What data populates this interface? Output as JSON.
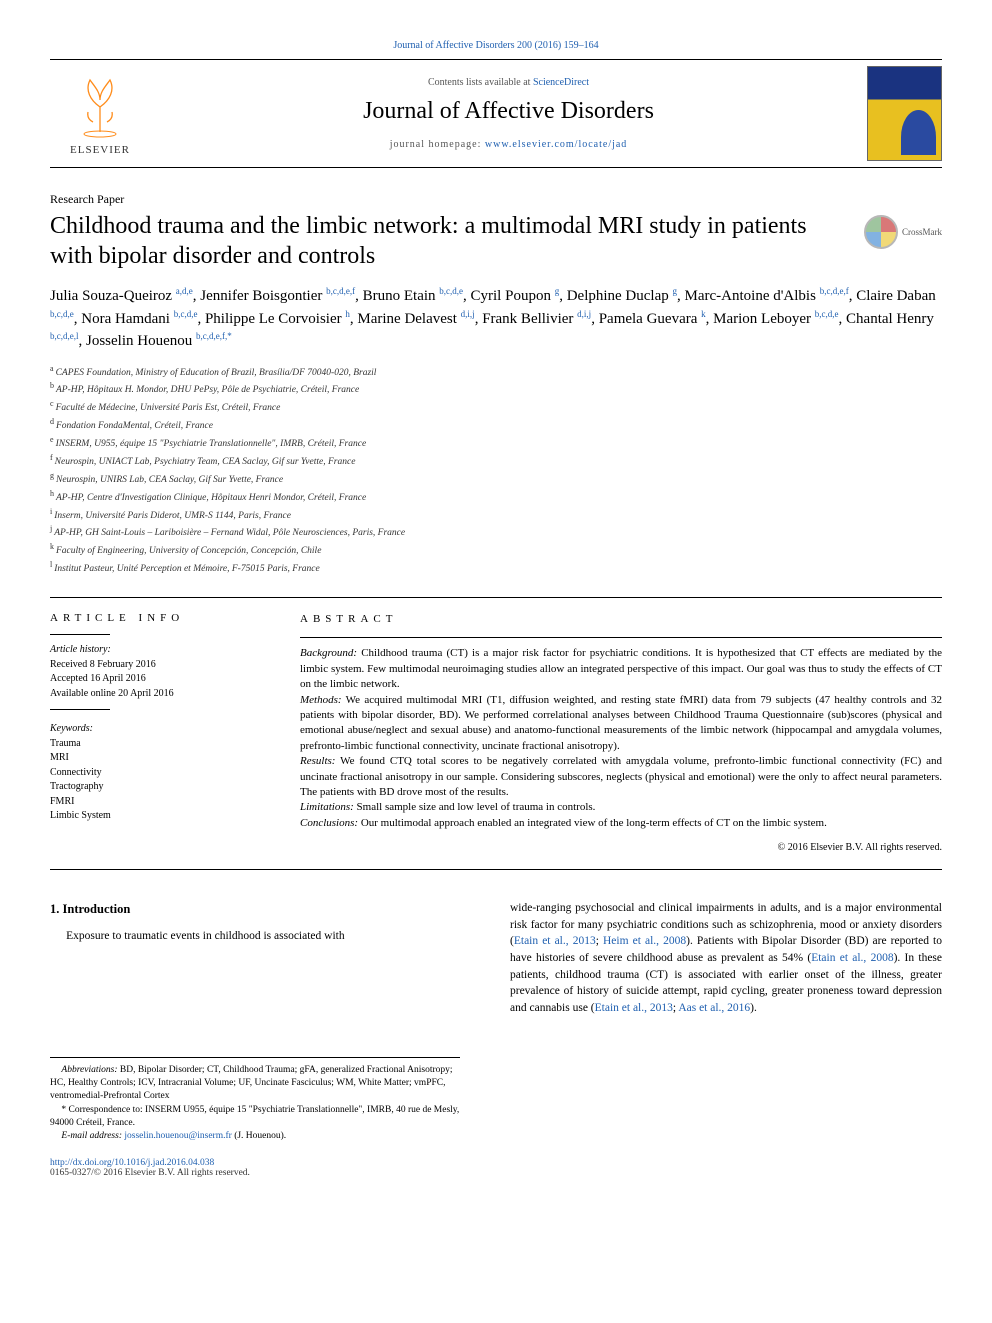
{
  "top_link": "Journal of Affective Disorders 200 (2016) 159–164",
  "header": {
    "publisher": "ELSEVIER",
    "contents_prefix": "Contents lists available at ",
    "contents_link": "ScienceDirect",
    "journal_title": "Journal of Affective Disorders",
    "homepage_prefix": "journal homepage: ",
    "homepage_link": "www.elsevier.com/locate/jad"
  },
  "crossmark_label": "CrossMark",
  "article_type": "Research Paper",
  "title": "Childhood trauma and the limbic network: a multimodal MRI study in patients with bipolar disorder and controls",
  "affiliations": [
    "CAPES Foundation, Ministry of Education of Brazil, Brasília/DF 70040-020, Brazil",
    "AP-HP, Hôpitaux H. Mondor, DHU PePsy, Pôle de Psychiatrie, Créteil, France",
    "Faculté de Médecine, Université Paris Est, Créteil, France",
    "Fondation FondaMental, Créteil, France",
    "INSERM, U955, équipe 15 \"Psychiatrie Translationnelle\", IMRB, Créteil, France",
    "Neurospin, UNIACT Lab, Psychiatry Team, CEA Saclay, Gif sur Yvette, France",
    "Neurospin, UNIRS Lab, CEA Saclay, Gif Sur Yvette, France",
    "AP-HP, Centre d'Investigation Clinique, Hôpitaux Henri Mondor, Créteil, France",
    "Inserm, Université Paris Diderot, UMR-S 1144, Paris, France",
    "AP-HP, GH Saint-Louis – Lariboisière – Fernand Widal, Pôle Neurosciences, Paris, France",
    "Faculty of Engineering, University of Concepción, Concepción, Chile",
    "Institut Pasteur, Unité Perception et Mémoire, F-75015 Paris, France"
  ],
  "aff_keys": [
    "a",
    "b",
    "c",
    "d",
    "e",
    "f",
    "g",
    "h",
    "i",
    "j",
    "k",
    "l"
  ],
  "info": {
    "label": "ARTICLE INFO",
    "history_label": "Article history:",
    "history": [
      "Received 8 February 2016",
      "Accepted 16 April 2016",
      "Available online 20 April 2016"
    ],
    "kw_label": "Keywords:",
    "keywords": [
      "Trauma",
      "MRI",
      "Connectivity",
      "Tractography",
      "FMRI",
      "Limbic System"
    ]
  },
  "abstract": {
    "label": "ABSTRACT",
    "bg_label": "Background:",
    "bg": "Childhood trauma (CT) is a major risk factor for psychiatric conditions. It is hypothesized that CT effects are mediated by the limbic system. Few multimodal neuroimaging studies allow an integrated perspective of this impact. Our goal was thus to study the effects of CT on the limbic network.",
    "methods_label": "Methods:",
    "methods": "We acquired multimodal MRI (T1, diffusion weighted, and resting state fMRI) data from 79 subjects (47 healthy controls and 32 patients with bipolar disorder, BD). We performed correlational analyses between Childhood Trauma Questionnaire (sub)scores (physical and emotional abuse/neglect and sexual abuse) and anatomo-functional measurements of the limbic network (hippocampal and amygdala volumes, prefronto-limbic functional connectivity, uncinate fractional anisotropy).",
    "results_label": "Results:",
    "results": "We found CTQ total scores to be negatively correlated with amygdala volume, prefronto-limbic functional connectivity (FC) and uncinate fractional anisotropy in our sample. Considering subscores, neglects (physical and emotional) were the only to affect neural parameters. The patients with BD drove most of the results.",
    "limit_label": "Limitations:",
    "limit": "Small sample size and low level of trauma in controls.",
    "concl_label": "Conclusions:",
    "concl": "Our multimodal approach enabled an integrated view of the long-term effects of CT on the limbic system.",
    "copyright": "© 2016 Elsevier B.V. All rights reserved."
  },
  "intro": {
    "heading": "1.  Introduction",
    "p1": "Exposure to traumatic events in childhood is associated with",
    "p2a": "wide-ranging psychosocial and clinical impairments in adults, and is a major environmental risk factor for many psychiatric conditions such as schizophrenia, mood or anxiety disorders (",
    "r1": "Etain et al., 2013",
    "p2b": "; ",
    "r2": "Heim et al., 2008",
    "p2c": "). Patients with Bipolar Disorder (BD) are reported to have histories of severe childhood abuse as prevalent as 54% (",
    "r3": "Etain et al., 2008",
    "p2d": "). In these patients, childhood trauma (CT) is associated with earlier onset of the illness, greater prevalence of history of suicide attempt, rapid cycling, greater proneness toward depression and cannabis use (",
    "r4": "Etain et al., 2013",
    "p2e": "; ",
    "r5": "Aas et al., 2016",
    "p2f": ")."
  },
  "footnotes": {
    "abbrev_label": "Abbreviations:",
    "abbrev": " BD, Bipolar Disorder; CT, Childhood Trauma; gFA, generalized Fractional Anisotropy; HC, Healthy Controls; ICV, Intracranial Volume; UF, Uncinate Fasciculus; WM, White Matter; vmPFC, ventromedial-Prefrontal Cortex",
    "corr_label": "* Correspondence to:",
    "corr": " INSERM U955, équipe 15 \"Psychiatrie Translationnelle\", IMRB, 40 rue de Mesly, 94000 Créteil, France.",
    "email_label": "E-mail address:",
    "email": "josselin.houenou@inserm.fr",
    "email_suffix": " (J. Houenou)."
  },
  "footer": {
    "doi": "http://dx.doi.org/10.1016/j.jad.2016.04.038",
    "issn": "0165-0327/© 2016 Elsevier B.V. All rights reserved."
  },
  "colors": {
    "link": "#2060b0",
    "text": "#000000",
    "muted": "#555555",
    "cover_top": "#1a3380",
    "cover_bottom": "#e8c020"
  },
  "typography": {
    "journal_title_pt": 24,
    "article_title_pt": 24,
    "authors_pt": 15,
    "affil_pt": 9.5,
    "abstract_pt": 11,
    "body_pt": 11.5,
    "footnote_pt": 9.5
  }
}
